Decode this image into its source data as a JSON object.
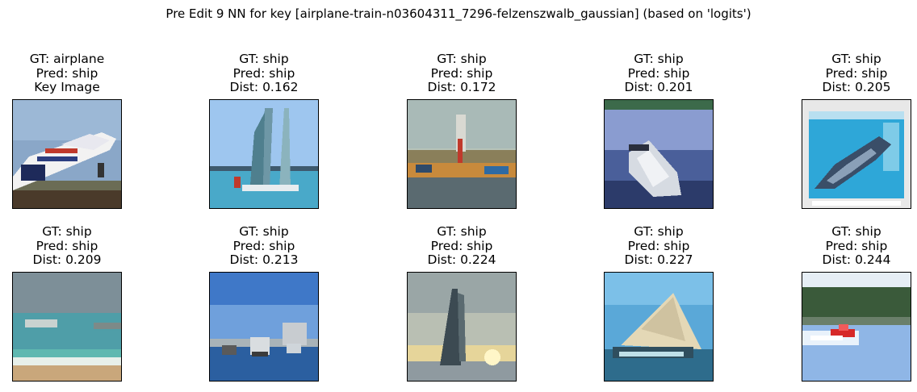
{
  "title": "Pre Edit 9 NN for key [airplane-train-n03604311_7296-felzenszwalb_gaussian] (based on 'logits')",
  "panels": [
    {
      "gt": "GT: airplane",
      "pred": "Pred: ship",
      "extra": "Key Image",
      "scene": "airplane"
    },
    {
      "gt": "GT: ship",
      "pred": "Pred: ship",
      "extra": "Dist: 0.162",
      "scene": "sailboats-blue"
    },
    {
      "gt": "GT: ship",
      "pred": "Pred: ship",
      "extra": "Dist: 0.172",
      "scene": "harbor"
    },
    {
      "gt": "GT: ship",
      "pred": "Pred: ship",
      "extra": "Dist: 0.201",
      "scene": "speedboat-lake"
    },
    {
      "gt": "GT: ship",
      "pred": "Pred: ship",
      "extra": "Dist: 0.205",
      "scene": "warship-poster"
    },
    {
      "gt": "GT: ship",
      "pred": "Pred: ship",
      "extra": "Dist: 0.209",
      "scene": "beach"
    },
    {
      "gt": "GT: ship",
      "pred": "Pred: ship",
      "extra": "Dist: 0.213",
      "scene": "port-boats"
    },
    {
      "gt": "GT: ship",
      "pred": "Pred: ship",
      "extra": "Dist: 0.224",
      "scene": "sunset-sail"
    },
    {
      "gt": "GT: ship",
      "pred": "Pred: ship",
      "extra": "Dist: 0.227",
      "scene": "junk-sail"
    },
    {
      "gt": "GT: ship",
      "pred": "Pred: ship",
      "extra": "Dist: 0.244",
      "scene": "red-jetboat"
    }
  ]
}
